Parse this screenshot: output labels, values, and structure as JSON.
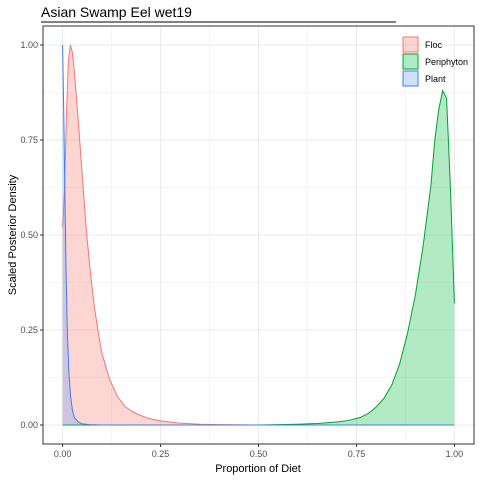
{
  "chart_data": {
    "type": "area",
    "title": "Asian Swamp Eel wet19",
    "xlabel": "Proportion of Diet",
    "ylabel": "Scaled Posterior Density",
    "xlim": [
      0,
      1
    ],
    "ylim": [
      0,
      1
    ],
    "x_ticks": [
      "0.00",
      "0.25",
      "0.50",
      "0.75",
      "1.00"
    ],
    "y_ticks": [
      "0.00",
      "0.25",
      "0.50",
      "0.75",
      "1.00"
    ],
    "grid": true,
    "legend_position": "top-right",
    "series": [
      {
        "name": "Floc",
        "fill": "#f8766d",
        "line": "#f8766d",
        "points": [
          [
            0.0,
            0.52
          ],
          [
            0.005,
            0.62
          ],
          [
            0.01,
            0.82
          ],
          [
            0.015,
            0.96
          ],
          [
            0.02,
            1.0
          ],
          [
            0.025,
            0.98
          ],
          [
            0.03,
            0.93
          ],
          [
            0.04,
            0.8
          ],
          [
            0.05,
            0.66
          ],
          [
            0.06,
            0.52
          ],
          [
            0.07,
            0.41
          ],
          [
            0.08,
            0.32
          ],
          [
            0.09,
            0.25
          ],
          [
            0.1,
            0.19
          ],
          [
            0.12,
            0.12
          ],
          [
            0.14,
            0.075
          ],
          [
            0.16,
            0.048
          ],
          [
            0.18,
            0.034
          ],
          [
            0.2,
            0.025
          ],
          [
            0.22,
            0.017
          ],
          [
            0.25,
            0.011
          ],
          [
            0.28,
            0.007
          ],
          [
            0.3,
            0.005
          ],
          [
            0.35,
            0.002
          ],
          [
            0.4,
            0.001
          ],
          [
            0.5,
            0.0
          ],
          [
            0.6,
            0.0
          ],
          [
            0.7,
            0.0
          ],
          [
            0.8,
            0.0
          ],
          [
            0.9,
            0.0
          ],
          [
            1.0,
            0.0
          ]
        ]
      },
      {
        "name": "Periphyton",
        "fill": "#00ba38",
        "line": "#00a02e",
        "points": [
          [
            0.0,
            0.0
          ],
          [
            0.3,
            0.0
          ],
          [
            0.5,
            0.0
          ],
          [
            0.55,
            0.001
          ],
          [
            0.6,
            0.002
          ],
          [
            0.65,
            0.004
          ],
          [
            0.7,
            0.008
          ],
          [
            0.73,
            0.012
          ],
          [
            0.76,
            0.02
          ],
          [
            0.78,
            0.03
          ],
          [
            0.8,
            0.047
          ],
          [
            0.82,
            0.07
          ],
          [
            0.84,
            0.105
          ],
          [
            0.86,
            0.16
          ],
          [
            0.88,
            0.24
          ],
          [
            0.9,
            0.34
          ],
          [
            0.92,
            0.47
          ],
          [
            0.94,
            0.63
          ],
          [
            0.95,
            0.75
          ],
          [
            0.96,
            0.83
          ],
          [
            0.97,
            0.88
          ],
          [
            0.98,
            0.86
          ],
          [
            0.99,
            0.62
          ],
          [
            1.0,
            0.32
          ]
        ]
      },
      {
        "name": "Plant",
        "fill": "#619cff",
        "line": "#3d7fe8",
        "points": [
          [
            0.0,
            1.0
          ],
          [
            0.003,
            0.82
          ],
          [
            0.006,
            0.6
          ],
          [
            0.009,
            0.4
          ],
          [
            0.012,
            0.25
          ],
          [
            0.016,
            0.14
          ],
          [
            0.02,
            0.08
          ],
          [
            0.025,
            0.04
          ],
          [
            0.03,
            0.02
          ],
          [
            0.04,
            0.008
          ],
          [
            0.05,
            0.003
          ],
          [
            0.07,
            0.001
          ],
          [
            0.1,
            0.0
          ],
          [
            0.5,
            0.0
          ],
          [
            1.0,
            0.0
          ]
        ]
      }
    ]
  }
}
